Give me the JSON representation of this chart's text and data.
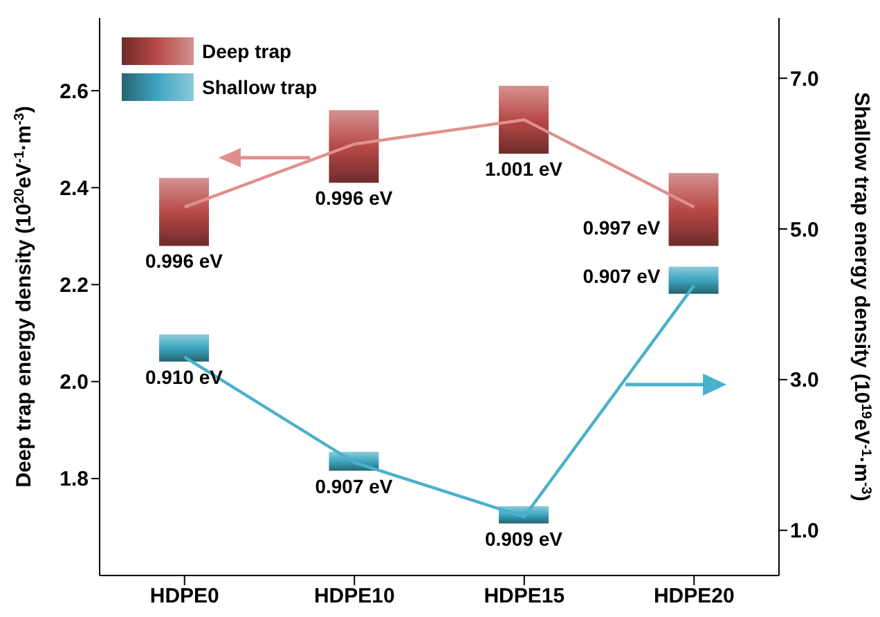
{
  "chart_data": {
    "type": "bar",
    "categories": [
      "HDPE0",
      "HDPE10",
      "HDPE15",
      "HDPE20"
    ],
    "ylabel": "Deep trap energy density (10$^{20}$eV$^{-1}$·m$^{-3}$)",
    "y2label": "Shallow trap energy density (10$^{19}$eV$^{-1}$·m$^{-3}$)",
    "ylim": [
      1.6,
      2.75
    ],
    "yticks": [
      1.8,
      {
        "value": 2.0,
        "label": "2.0"
      },
      2.2,
      2.4,
      2.6
    ],
    "y2lim": [
      0.4,
      7.8
    ],
    "y2ticks": [
      {
        "value": 1,
        "label": "1.0"
      },
      {
        "value": 3,
        "label": "3.0"
      },
      {
        "value": 5,
        "label": "5.0"
      },
      {
        "value": 7,
        "label": "7.0"
      }
    ],
    "series": [
      {
        "name": "Deep trap",
        "color": "#b84a47",
        "base": [
          2.28,
          2.41,
          2.47,
          2.28
        ],
        "values": [
          0.14,
          0.15,
          0.14,
          0.15
        ]
      },
      {
        "type": "line",
        "color": "#e0908c",
        "values": [
          2.36,
          2.49,
          2.54,
          2.36
        ]
      },
      {
        "name": "Shallow trap",
        "axis": "y2",
        "color": "#3ea6c0",
        "base": [
          3.24,
          1.79,
          1.09,
          4.14
        ],
        "values": [
          0.36,
          0.25,
          0.23,
          0.36
        ]
      },
      {
        "type": "line",
        "axis": "y2",
        "color": "#4ab0cc",
        "values": [
          3.3,
          1.9,
          1.18,
          4.25
        ]
      }
    ],
    "annotations": [
      "0.996 eV",
      "0.996 eV",
      "1.001 eV",
      "0.997 eV",
      "0.910 eV",
      "0.907 eV",
      "0.909 eV",
      "0.907 eV"
    ],
    "grid": false,
    "legend": "top left",
    "marker": "none",
    "line_style": "solid"
  }
}
